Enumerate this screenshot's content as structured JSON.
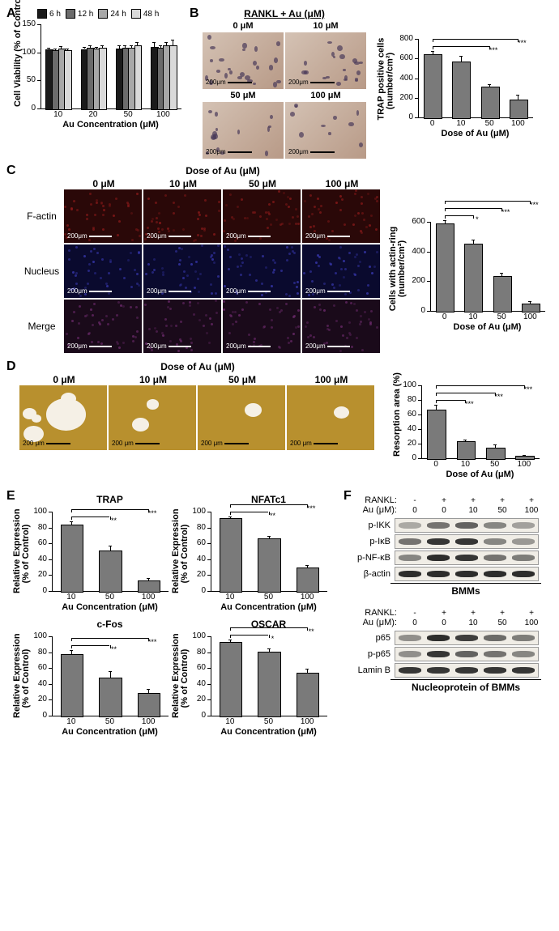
{
  "panelA": {
    "label": "A",
    "ylabel": "Cell Viability (% of Control)",
    "xlabel": "Au Concentration (μM)",
    "legend": [
      {
        "label": "6 h",
        "color": "#1a1a1a"
      },
      {
        "label": "12 h",
        "color": "#6b6b6b"
      },
      {
        "label": "24 h",
        "color": "#a8a8a8"
      },
      {
        "label": "48 h",
        "color": "#d9d9d9"
      }
    ],
    "categories": [
      "10",
      "20",
      "50",
      "100"
    ],
    "ylim": [
      0,
      150
    ],
    "ytick_step": 50,
    "data": [
      [
        105,
        104,
        107,
        104
      ],
      [
        106,
        108,
        107,
        108
      ],
      [
        107,
        108,
        108,
        112
      ],
      [
        110,
        108,
        112,
        112
      ]
    ],
    "err": [
      [
        3,
        3,
        4,
        3
      ],
      [
        4,
        4,
        3,
        4
      ],
      [
        5,
        4,
        4,
        6
      ],
      [
        8,
        5,
        6,
        10
      ]
    ]
  },
  "panelB": {
    "label": "B",
    "header": "RANKL + Au (μM)",
    "doses": [
      "0 μM",
      "10 μM",
      "50 μM",
      "100 μM"
    ],
    "scalebar": "200μm",
    "micro_bg": [
      "#bfa89b",
      "#c5b0a2"
    ],
    "chart": {
      "ylabel": "TRAP positive cells\n(number/cm²)",
      "xlabel": "Dose of Au (μM)",
      "categories": [
        "0",
        "10",
        "50",
        "100"
      ],
      "ylim": [
        0,
        800
      ],
      "ytick_step": 200,
      "values": [
        640,
        570,
        310,
        185
      ],
      "err": [
        40,
        55,
        30,
        50
      ],
      "sig": [
        "",
        "",
        "***",
        "***"
      ],
      "bar_color": "#7a7a7a"
    }
  },
  "panelC": {
    "label": "C",
    "header": "Dose of Au (μM)",
    "doses": [
      "0 μM",
      "10 μM",
      "50 μM",
      "100 μM"
    ],
    "rows": [
      {
        "label": "F-actin",
        "color": "#2a0808",
        "tint": "#8b1a1a"
      },
      {
        "label": "Nucleus",
        "color": "#0a0a2e",
        "tint": "#3838b0"
      },
      {
        "label": "Merge",
        "color": "#1a0a1a",
        "tint": "#6b2a6b"
      }
    ],
    "scalebar": "200μm",
    "chart": {
      "ylabel": "Cells with actin-ring\n(number/cm²)",
      "xlabel": "Dose of Au (μM)",
      "categories": [
        "0",
        "10",
        "50",
        "100"
      ],
      "ylim": [
        0,
        600
      ],
      "ytick_step": 200,
      "values": [
        590,
        455,
        235,
        50
      ],
      "err": [
        20,
        25,
        20,
        15
      ],
      "sig": [
        "",
        "*",
        "***",
        "***"
      ],
      "bar_color": "#7a7a7a"
    }
  },
  "panelD": {
    "label": "D",
    "header": "Dose of Au (μM)",
    "doses": [
      "0 μM",
      "10 μM",
      "50 μM",
      "100 μM"
    ],
    "scalebar": "200 μm",
    "bg": "#b8902e",
    "chart": {
      "ylabel": "Resorption area (%)",
      "xlabel": "Dose of Au (μM)",
      "categories": [
        "0",
        "10",
        "50",
        "100"
      ],
      "ylim": [
        0,
        100
      ],
      "ytick_step": 20,
      "values": [
        67,
        23,
        14,
        3
      ],
      "err": [
        6,
        3,
        5,
        2
      ],
      "sig": [
        "",
        "***",
        "***",
        "***"
      ],
      "bar_color": "#7a7a7a"
    }
  },
  "panelE": {
    "label": "E",
    "xlabel": "Au Concentration (μM)",
    "ylabel": "Relative Expression\n(% of Control)",
    "categories": [
      "10",
      "50",
      "100"
    ],
    "ylim": [
      0,
      100
    ],
    "ytick_step": 20,
    "bar_color": "#7a7a7a",
    "charts": [
      {
        "title": "TRAP",
        "values": [
          84,
          51,
          13
        ],
        "err": [
          4,
          6,
          3
        ],
        "sig": [
          "",
          "**",
          "***"
        ]
      },
      {
        "title": "NFATc1",
        "values": [
          92,
          66,
          30
        ],
        "err": [
          2,
          3,
          3
        ],
        "sig": [
          "",
          "**",
          "***"
        ]
      },
      {
        "title": "c-Fos",
        "values": [
          78,
          48,
          29
        ],
        "err": [
          5,
          8,
          5
        ],
        "sig": [
          "",
          "**",
          "***"
        ]
      },
      {
        "title": "OSCAR",
        "values": [
          93,
          81,
          54
        ],
        "err": [
          3,
          4,
          5
        ],
        "sig": [
          "",
          "*",
          "**"
        ]
      }
    ]
  },
  "panelF": {
    "label": "F",
    "lane_headers": {
      "rankl_label": "RANKL:",
      "au_label": "Au (μM):",
      "rankl": [
        "-",
        "+",
        "+",
        "+",
        "+"
      ],
      "au": [
        "0",
        "0",
        "10",
        "50",
        "100"
      ]
    },
    "blot1": {
      "rows": [
        {
          "label": "p-IKK",
          "intensity": [
            0.2,
            0.5,
            0.6,
            0.4,
            0.25
          ]
        },
        {
          "label": "p-IκB",
          "intensity": [
            0.5,
            0.85,
            0.85,
            0.4,
            0.3
          ]
        },
        {
          "label": "p-NF-κB",
          "intensity": [
            0.4,
            0.9,
            0.85,
            0.5,
            0.45
          ]
        },
        {
          "label": "β-actin",
          "intensity": [
            0.9,
            0.9,
            0.9,
            0.9,
            0.9
          ]
        }
      ],
      "footer": "BMMs"
    },
    "blot2": {
      "rows": [
        {
          "label": "p65",
          "intensity": [
            0.35,
            0.9,
            0.8,
            0.55,
            0.45
          ]
        },
        {
          "label": "p-p65",
          "intensity": [
            0.35,
            0.85,
            0.6,
            0.5,
            0.4
          ]
        },
        {
          "label": "Lamin B",
          "intensity": [
            0.85,
            0.85,
            0.85,
            0.85,
            0.85
          ]
        }
      ],
      "footer": "Nucleoprotein of BMMs"
    },
    "lane_width": 36
  }
}
